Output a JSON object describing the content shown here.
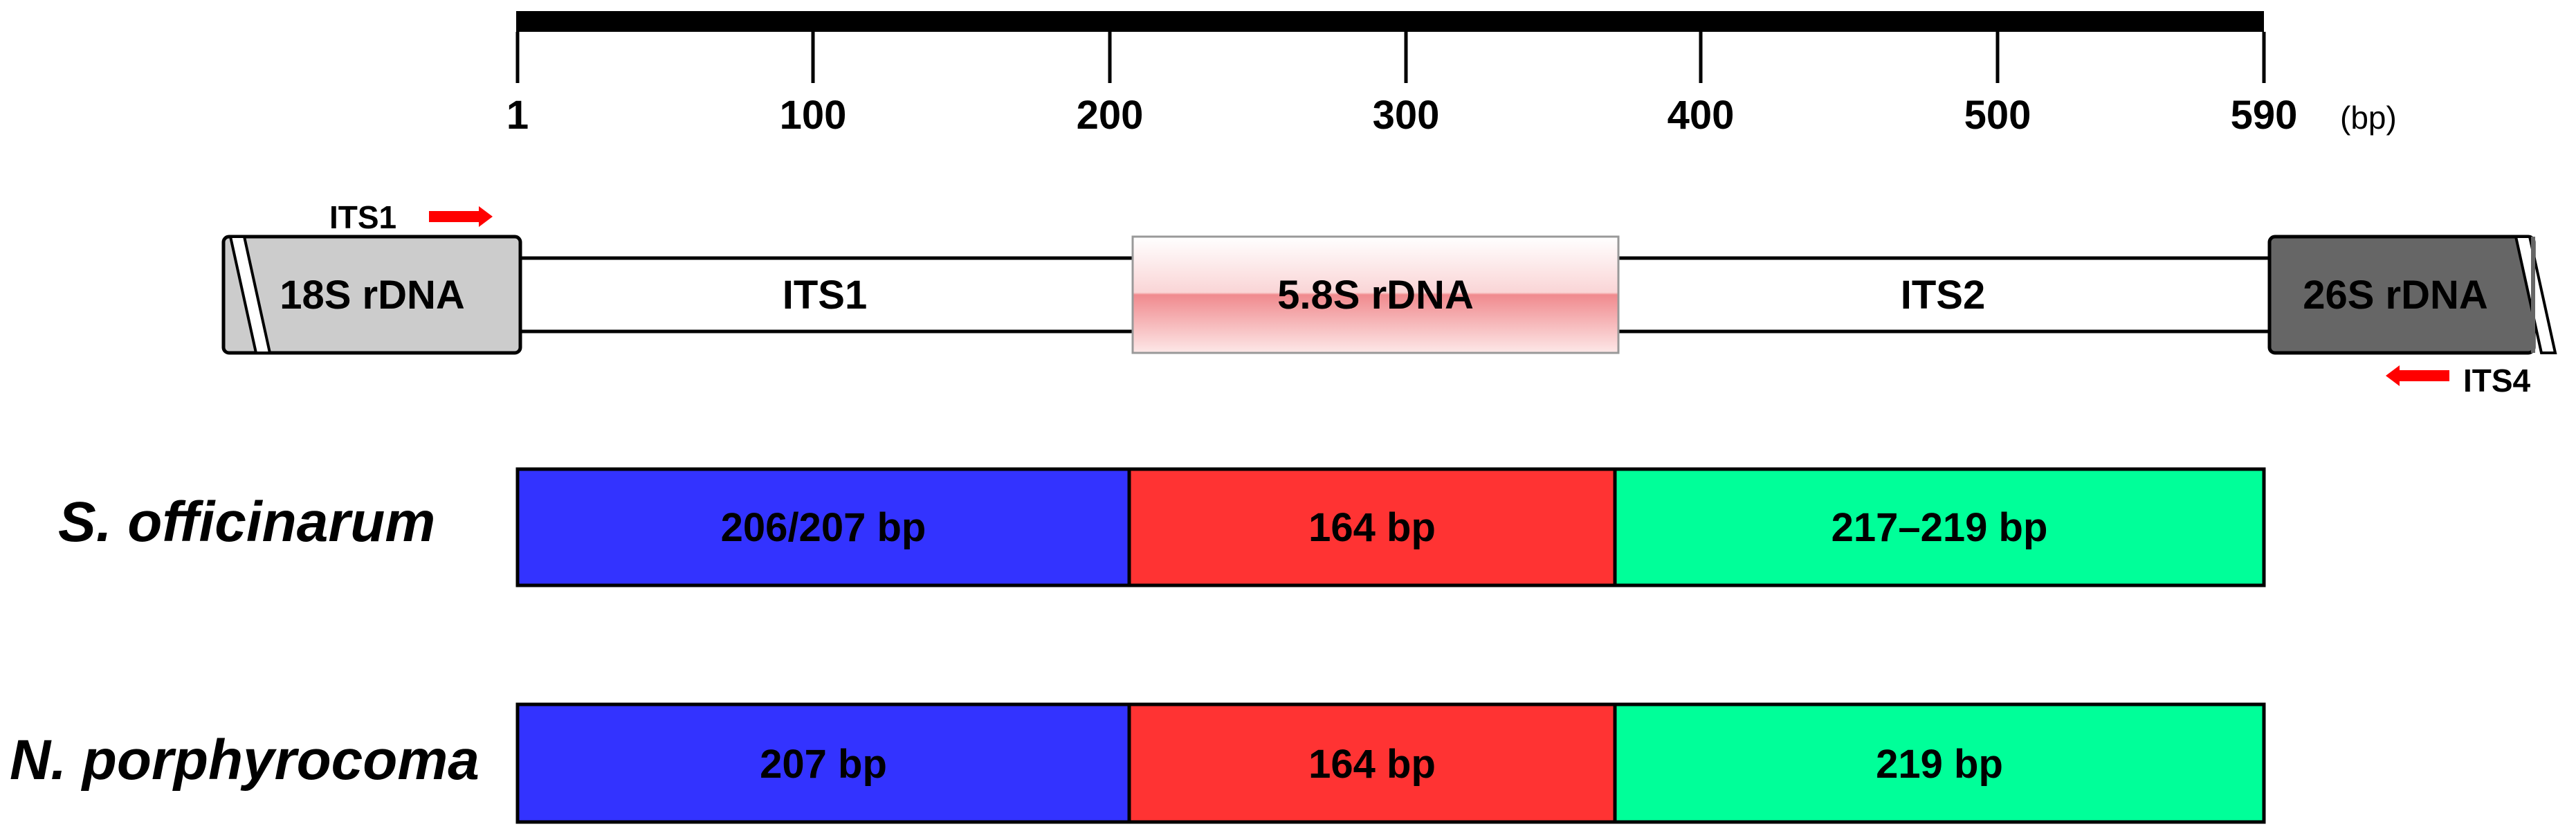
{
  "scale": {
    "ticks": [
      "1",
      "100",
      "200",
      "300",
      "400",
      "500",
      "590"
    ],
    "unit": "(bp)"
  },
  "gene_map": {
    "regions": {
      "s18": "18S rDNA",
      "its1": "ITS1",
      "s58": "5.8S rDNA",
      "its2": "ITS2",
      "s26": "26S rDNA"
    },
    "primers": {
      "forward": "ITS1",
      "reverse": "ITS4"
    }
  },
  "species": [
    {
      "name": "S. officinarum",
      "its1": "206/207 bp",
      "s58": "164 bp",
      "its2": "217–219 bp"
    },
    {
      "name": "N. porphyrocoma",
      "its1": "207 bp",
      "s58": "164 bp",
      "its2": "219 bp"
    }
  ],
  "colors": {
    "its1_segment": "#3333ff",
    "s58_segment": "#ff3333",
    "its2_segment": "#00ff99",
    "s18_box": "#cccccc",
    "s26_box": "#666666",
    "primer_arrow": "#ff0000",
    "s58_gradient": "#f08a8e"
  }
}
